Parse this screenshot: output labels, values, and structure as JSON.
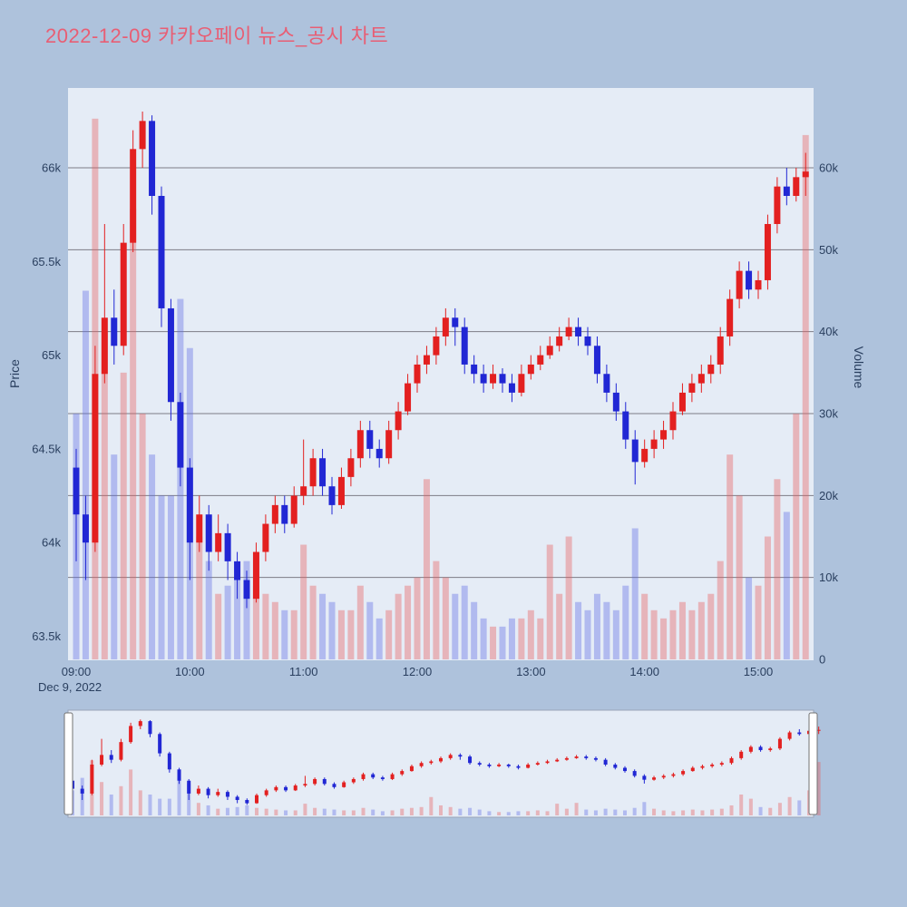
{
  "title": "2022-12-09 카카오페이 뉴스_공시 차트",
  "colors": {
    "page_bg": "#aec2dc",
    "title": "#e85e74",
    "plot_bg": "#e5ecf6",
    "grid": "#7d7d86",
    "tick_text": "#2a3f5f",
    "up": "#e32020",
    "down": "#2127d4",
    "vol_up": "rgba(232,90,90,0.38)",
    "vol_down": "rgba(92,104,228,0.38)",
    "slider_border": "#9aa4b8",
    "handle_fill": "#ffffff",
    "handle_border": "#737373"
  },
  "chart_data": {
    "type": "candlestick",
    "title": "2022-12-09 카카오페이 뉴스_공시 차트",
    "date_label": "Dec 9, 2022",
    "x_ticks": [
      "09:00",
      "10:00",
      "11:00",
      "12:00",
      "13:00",
      "14:00",
      "15:00"
    ],
    "price_axis": {
      "label": "Price",
      "ticks": [
        "63.5k",
        "64k",
        "64.5k",
        "65k",
        "65.5k",
        "66k"
      ],
      "tick_values": [
        63500,
        64000,
        64500,
        65000,
        65500,
        66000
      ],
      "range": [
        63350,
        66450
      ]
    },
    "volume_axis": {
      "label": "Volume",
      "ticks": [
        "0",
        "10k",
        "20k",
        "30k",
        "40k",
        "50k",
        "60k"
      ],
      "tick_values": [
        0,
        10000,
        20000,
        30000,
        40000,
        50000,
        60000
      ],
      "range": [
        0,
        70000
      ]
    },
    "legend": "none",
    "grid": "horizontal-volume-ticks",
    "candle_columns": [
      "time",
      "open",
      "high",
      "low",
      "close",
      "volume"
    ],
    "candles": [
      [
        "09:00",
        64400,
        64500,
        63900,
        64150,
        30000
      ],
      [
        "09:05",
        64150,
        64250,
        63800,
        64000,
        45000
      ],
      [
        "09:10",
        64000,
        65050,
        63950,
        64900,
        66000
      ],
      [
        "09:15",
        64900,
        65700,
        64850,
        65200,
        40000
      ],
      [
        "09:20",
        65200,
        65350,
        64950,
        65050,
        25000
      ],
      [
        "09:25",
        65050,
        65700,
        65000,
        65600,
        35000
      ],
      [
        "09:30",
        65600,
        66200,
        65550,
        66100,
        55000
      ],
      [
        "09:35",
        66100,
        66300,
        66000,
        66250,
        30000
      ],
      [
        "09:40",
        66250,
        66280,
        65750,
        65850,
        25000
      ],
      [
        "09:45",
        65850,
        65900,
        65150,
        65250,
        20000
      ],
      [
        "09:50",
        65250,
        65300,
        64650,
        64750,
        20000
      ],
      [
        "09:55",
        64750,
        64800,
        64300,
        64400,
        44000
      ],
      [
        "10:00",
        64400,
        64450,
        63800,
        64000,
        38000
      ],
      [
        "10:05",
        64000,
        64250,
        63950,
        64150,
        15000
      ],
      [
        "10:10",
        64150,
        64200,
        63850,
        63950,
        12000
      ],
      [
        "10:15",
        63950,
        64150,
        63900,
        64050,
        8000
      ],
      [
        "10:20",
        64050,
        64100,
        63800,
        63900,
        9000
      ],
      [
        "10:25",
        63900,
        63950,
        63700,
        63800,
        10000
      ],
      [
        "10:30",
        63800,
        63850,
        63650,
        63700,
        12000
      ],
      [
        "10:35",
        63700,
        64000,
        63680,
        63950,
        9000
      ],
      [
        "10:40",
        63950,
        64150,
        63900,
        64100,
        8000
      ],
      [
        "10:45",
        64100,
        64250,
        64050,
        64200,
        7000
      ],
      [
        "10:50",
        64200,
        64250,
        64050,
        64100,
        6000
      ],
      [
        "10:55",
        64100,
        64300,
        64080,
        64250,
        6000
      ],
      [
        "11:00",
        64250,
        64550,
        64200,
        64300,
        14000
      ],
      [
        "11:05",
        64300,
        64500,
        64250,
        64450,
        9000
      ],
      [
        "11:10",
        64450,
        64500,
        64250,
        64300,
        8000
      ],
      [
        "11:15",
        64300,
        64350,
        64150,
        64200,
        7000
      ],
      [
        "11:20",
        64200,
        64400,
        64180,
        64350,
        6000
      ],
      [
        "11:25",
        64350,
        64500,
        64300,
        64450,
        6000
      ],
      [
        "11:30",
        64450,
        64650,
        64400,
        64600,
        9000
      ],
      [
        "11:35",
        64600,
        64650,
        64450,
        64500,
        7000
      ],
      [
        "11:40",
        64500,
        64550,
        64400,
        64450,
        5000
      ],
      [
        "11:45",
        64450,
        64650,
        64420,
        64600,
        6000
      ],
      [
        "11:50",
        64600,
        64750,
        64550,
        64700,
        8000
      ],
      [
        "11:55",
        64700,
        64900,
        64680,
        64850,
        9000
      ],
      [
        "12:00",
        64850,
        65000,
        64800,
        64950,
        10000
      ],
      [
        "12:05",
        64950,
        65050,
        64900,
        65000,
        22000
      ],
      [
        "12:10",
        65000,
        65150,
        64950,
        65100,
        12000
      ],
      [
        "12:15",
        65100,
        65250,
        65050,
        65200,
        10000
      ],
      [
        "12:20",
        65200,
        65250,
        65050,
        65150,
        8000
      ],
      [
        "12:25",
        65150,
        65200,
        64900,
        64950,
        9000
      ],
      [
        "12:30",
        64950,
        65000,
        64850,
        64900,
        7000
      ],
      [
        "12:35",
        64900,
        64950,
        64800,
        64850,
        5000
      ],
      [
        "12:40",
        64850,
        64950,
        64820,
        64900,
        4000
      ],
      [
        "12:45",
        64900,
        64930,
        64800,
        64850,
        4000
      ],
      [
        "12:50",
        64850,
        64900,
        64750,
        64800,
        5000
      ],
      [
        "12:55",
        64800,
        64950,
        64780,
        64900,
        5000
      ],
      [
        "13:00",
        64900,
        65000,
        64870,
        64950,
        6000
      ],
      [
        "13:05",
        64950,
        65050,
        64920,
        65000,
        5000
      ],
      [
        "13:10",
        65000,
        65100,
        64980,
        65050,
        14000
      ],
      [
        "13:15",
        65050,
        65150,
        65020,
        65100,
        8000
      ],
      [
        "13:20",
        65100,
        65200,
        65080,
        65150,
        15000
      ],
      [
        "13:25",
        65150,
        65200,
        65050,
        65100,
        7000
      ],
      [
        "13:30",
        65100,
        65150,
        65000,
        65050,
        6000
      ],
      [
        "13:35",
        65050,
        65100,
        64850,
        64900,
        8000
      ],
      [
        "13:40",
        64900,
        64950,
        64750,
        64800,
        7000
      ],
      [
        "13:45",
        64800,
        64850,
        64650,
        64700,
        6000
      ],
      [
        "13:50",
        64700,
        64750,
        64500,
        64550,
        9000
      ],
      [
        "13:55",
        64550,
        64600,
        64310,
        64430,
        16000
      ],
      [
        "14:00",
        64430,
        64550,
        64400,
        64500,
        8000
      ],
      [
        "14:05",
        64500,
        64600,
        64450,
        64550,
        6000
      ],
      [
        "14:10",
        64550,
        64650,
        64500,
        64600,
        5000
      ],
      [
        "14:15",
        64600,
        64750,
        64550,
        64700,
        6000
      ],
      [
        "14:20",
        64700,
        64850,
        64680,
        64800,
        7000
      ],
      [
        "14:25",
        64800,
        64900,
        64750,
        64850,
        6000
      ],
      [
        "14:30",
        64850,
        64950,
        64800,
        64900,
        7000
      ],
      [
        "14:35",
        64900,
        65000,
        64850,
        64950,
        8000
      ],
      [
        "14:40",
        64950,
        65150,
        64900,
        65100,
        12000
      ],
      [
        "14:45",
        65100,
        65350,
        65050,
        65300,
        25000
      ],
      [
        "14:50",
        65300,
        65500,
        65250,
        65450,
        20000
      ],
      [
        "14:55",
        65450,
        65500,
        65300,
        65350,
        10000
      ],
      [
        "15:00",
        65350,
        65450,
        65300,
        65400,
        9000
      ],
      [
        "15:05",
        65400,
        65750,
        65350,
        65700,
        15000
      ],
      [
        "15:10",
        65700,
        65950,
        65650,
        65900,
        22000
      ],
      [
        "15:15",
        65900,
        66000,
        65800,
        65850,
        18000
      ],
      [
        "15:20",
        65850,
        66000,
        65820,
        65950,
        30000
      ],
      [
        "15:25",
        65950,
        66080,
        65850,
        65980,
        64000
      ]
    ],
    "rangeslider": true
  }
}
